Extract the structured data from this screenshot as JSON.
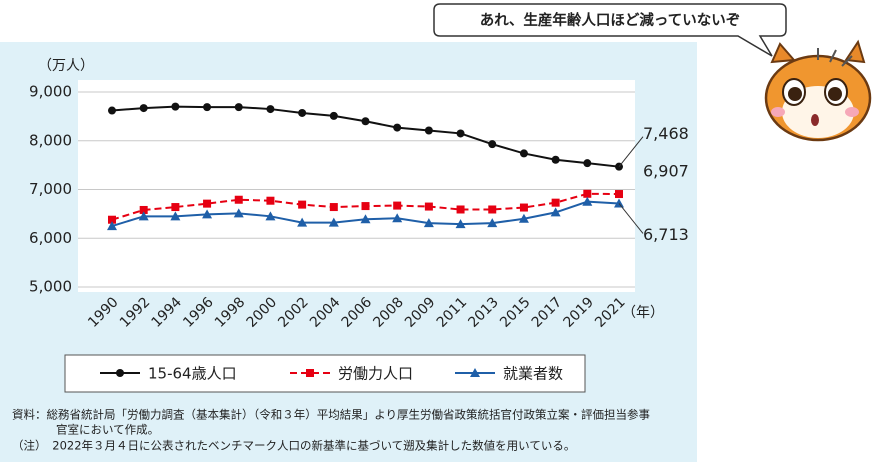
{
  "chart_data": {
    "type": "line",
    "y_unit": "（万人）",
    "x_unit": "（年）",
    "categories": [
      "1990",
      "1992",
      "1994",
      "1996",
      "1998",
      "2000",
      "2002",
      "2004",
      "2006",
      "2008",
      "2009",
      "2011",
      "2013",
      "2015",
      "2017",
      "2019",
      "2021"
    ],
    "series": [
      {
        "name": "15-64歳人口",
        "color": "#111111",
        "marker": "circle",
        "dash": false,
        "values": [
          8620,
          8670,
          8700,
          8690,
          8690,
          8650,
          8570,
          8510,
          8400,
          8270,
          8210,
          8150,
          7930,
          7740,
          7610,
          7540,
          7468
        ],
        "value_labels": [
          null,
          null,
          null,
          null,
          null,
          null,
          null,
          null,
          null,
          null,
          null,
          null,
          null,
          null,
          null,
          null,
          "7,468"
        ]
      },
      {
        "name": "労働力人口",
        "color": "#e60012",
        "marker": "square",
        "dash": true,
        "values": [
          6380,
          6580,
          6640,
          6710,
          6790,
          6770,
          6690,
          6640,
          6660,
          6670,
          6650,
          6590,
          6590,
          6630,
          6730,
          6912,
          6907
        ],
        "value_labels": [
          null,
          null,
          null,
          null,
          null,
          null,
          null,
          null,
          null,
          null,
          null,
          null,
          null,
          null,
          null,
          null,
          "6,907"
        ]
      },
      {
        "name": "就業者数",
        "color": "#1f5fa8",
        "marker": "triangle",
        "dash": false,
        "values": [
          6250,
          6450,
          6450,
          6490,
          6510,
          6450,
          6320,
          6320,
          6390,
          6410,
          6310,
          6290,
          6310,
          6400,
          6530,
          6750,
          6713
        ],
        "value_labels": [
          null,
          null,
          null,
          null,
          null,
          null,
          null,
          null,
          null,
          null,
          null,
          null,
          null,
          null,
          null,
          null,
          "6,713"
        ]
      }
    ],
    "ylim": [
      5000,
      9000
    ],
    "yticks": [
      {
        "value": 5000,
        "label": "5,000"
      },
      {
        "value": 6000,
        "label": "6,000"
      },
      {
        "value": 7000,
        "label": "7,000"
      },
      {
        "value": 8000,
        "label": "8,000"
      },
      {
        "value": 9000,
        "label": "9,000"
      }
    ],
    "grid": true,
    "legend": "bottom",
    "notes": [
      "資料：総務省統計局「労働力調査（基本集計）（令和３年）平均結果」より厚生労働省政策統括官付政策立案・評価担当参事",
      "官室において作成。",
      "（注）　2022年３月４日に公表されたベンチマーク人口の新基準に基づいて遡及集計した数値を用いている。"
    ],
    "speech": "あれ、生産年齢人口ほど減っていないぞ"
  }
}
